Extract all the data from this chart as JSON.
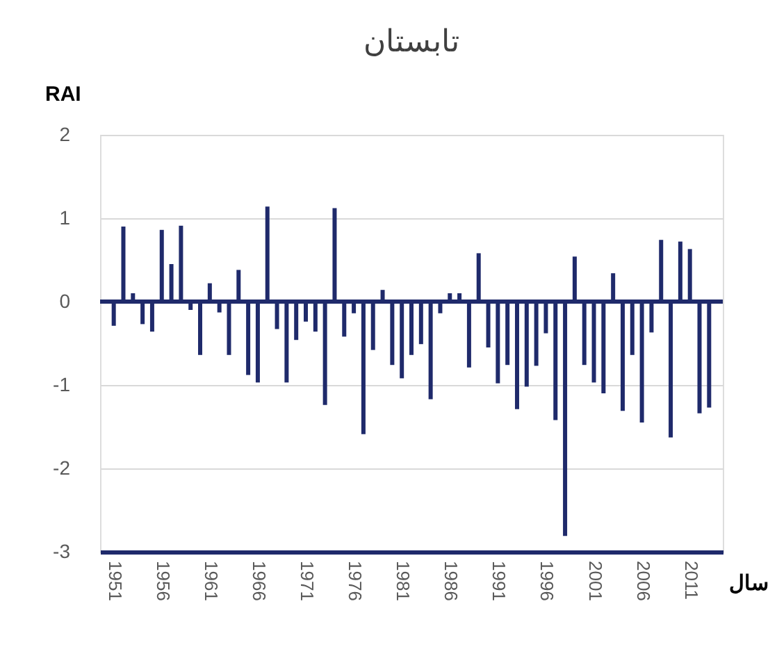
{
  "chart_data": {
    "type": "bar",
    "title": "تابستان",
    "xlabel": "سال",
    "ylabel": "RAI",
    "x": [
      1951,
      1952,
      1953,
      1954,
      1955,
      1956,
      1957,
      1958,
      1959,
      1960,
      1961,
      1962,
      1963,
      1964,
      1965,
      1966,
      1967,
      1968,
      1969,
      1970,
      1971,
      1972,
      1973,
      1974,
      1975,
      1976,
      1977,
      1978,
      1979,
      1980,
      1981,
      1982,
      1983,
      1984,
      1985,
      1986,
      1987,
      1988,
      1989,
      1990,
      1991,
      1992,
      1993,
      1994,
      1995,
      1996,
      1997,
      1998,
      1999,
      2000,
      2001,
      2002,
      2003,
      2004,
      2005,
      2006,
      2007,
      2008,
      2009,
      2010,
      2011,
      2012,
      2013
    ],
    "values": [
      -0.29,
      0.9,
      0.1,
      -0.27,
      -0.36,
      0.86,
      0.45,
      0.91,
      -0.1,
      -0.64,
      0.22,
      -0.13,
      -0.64,
      0.38,
      -0.88,
      -0.97,
      1.14,
      -0.33,
      -0.97,
      -0.46,
      -0.24,
      -0.36,
      -1.24,
      1.12,
      -0.42,
      -0.14,
      -1.59,
      -0.58,
      0.14,
      -0.76,
      -0.92,
      -0.64,
      -0.51,
      -1.17,
      -0.14,
      0.1,
      0.1,
      -0.79,
      0.58,
      -0.55,
      -0.98,
      -0.76,
      -1.29,
      -1.02,
      -0.77,
      -0.38,
      -1.42,
      -2.81,
      0.54,
      -0.76,
      -0.97,
      -1.1,
      0.34,
      -1.31,
      -0.64,
      -1.45,
      -0.37,
      0.74,
      -1.63,
      0.72,
      0.63,
      -1.34,
      -1.27
    ],
    "color": "#1f2a6b",
    "xlim": [
      1950.3,
      2013.7
    ],
    "xticks": [
      1951,
      1956,
      1961,
      1966,
      1971,
      1976,
      1981,
      1986,
      1991,
      1996,
      2001,
      2006,
      2011
    ],
    "ylim": [
      -3,
      2
    ],
    "yticks": [
      -3,
      -2,
      -1,
      0,
      1,
      2
    ],
    "grid": "y",
    "ref_lines": [
      {
        "axis": "y",
        "value": 0,
        "color": "#1f2a6b"
      }
    ]
  }
}
